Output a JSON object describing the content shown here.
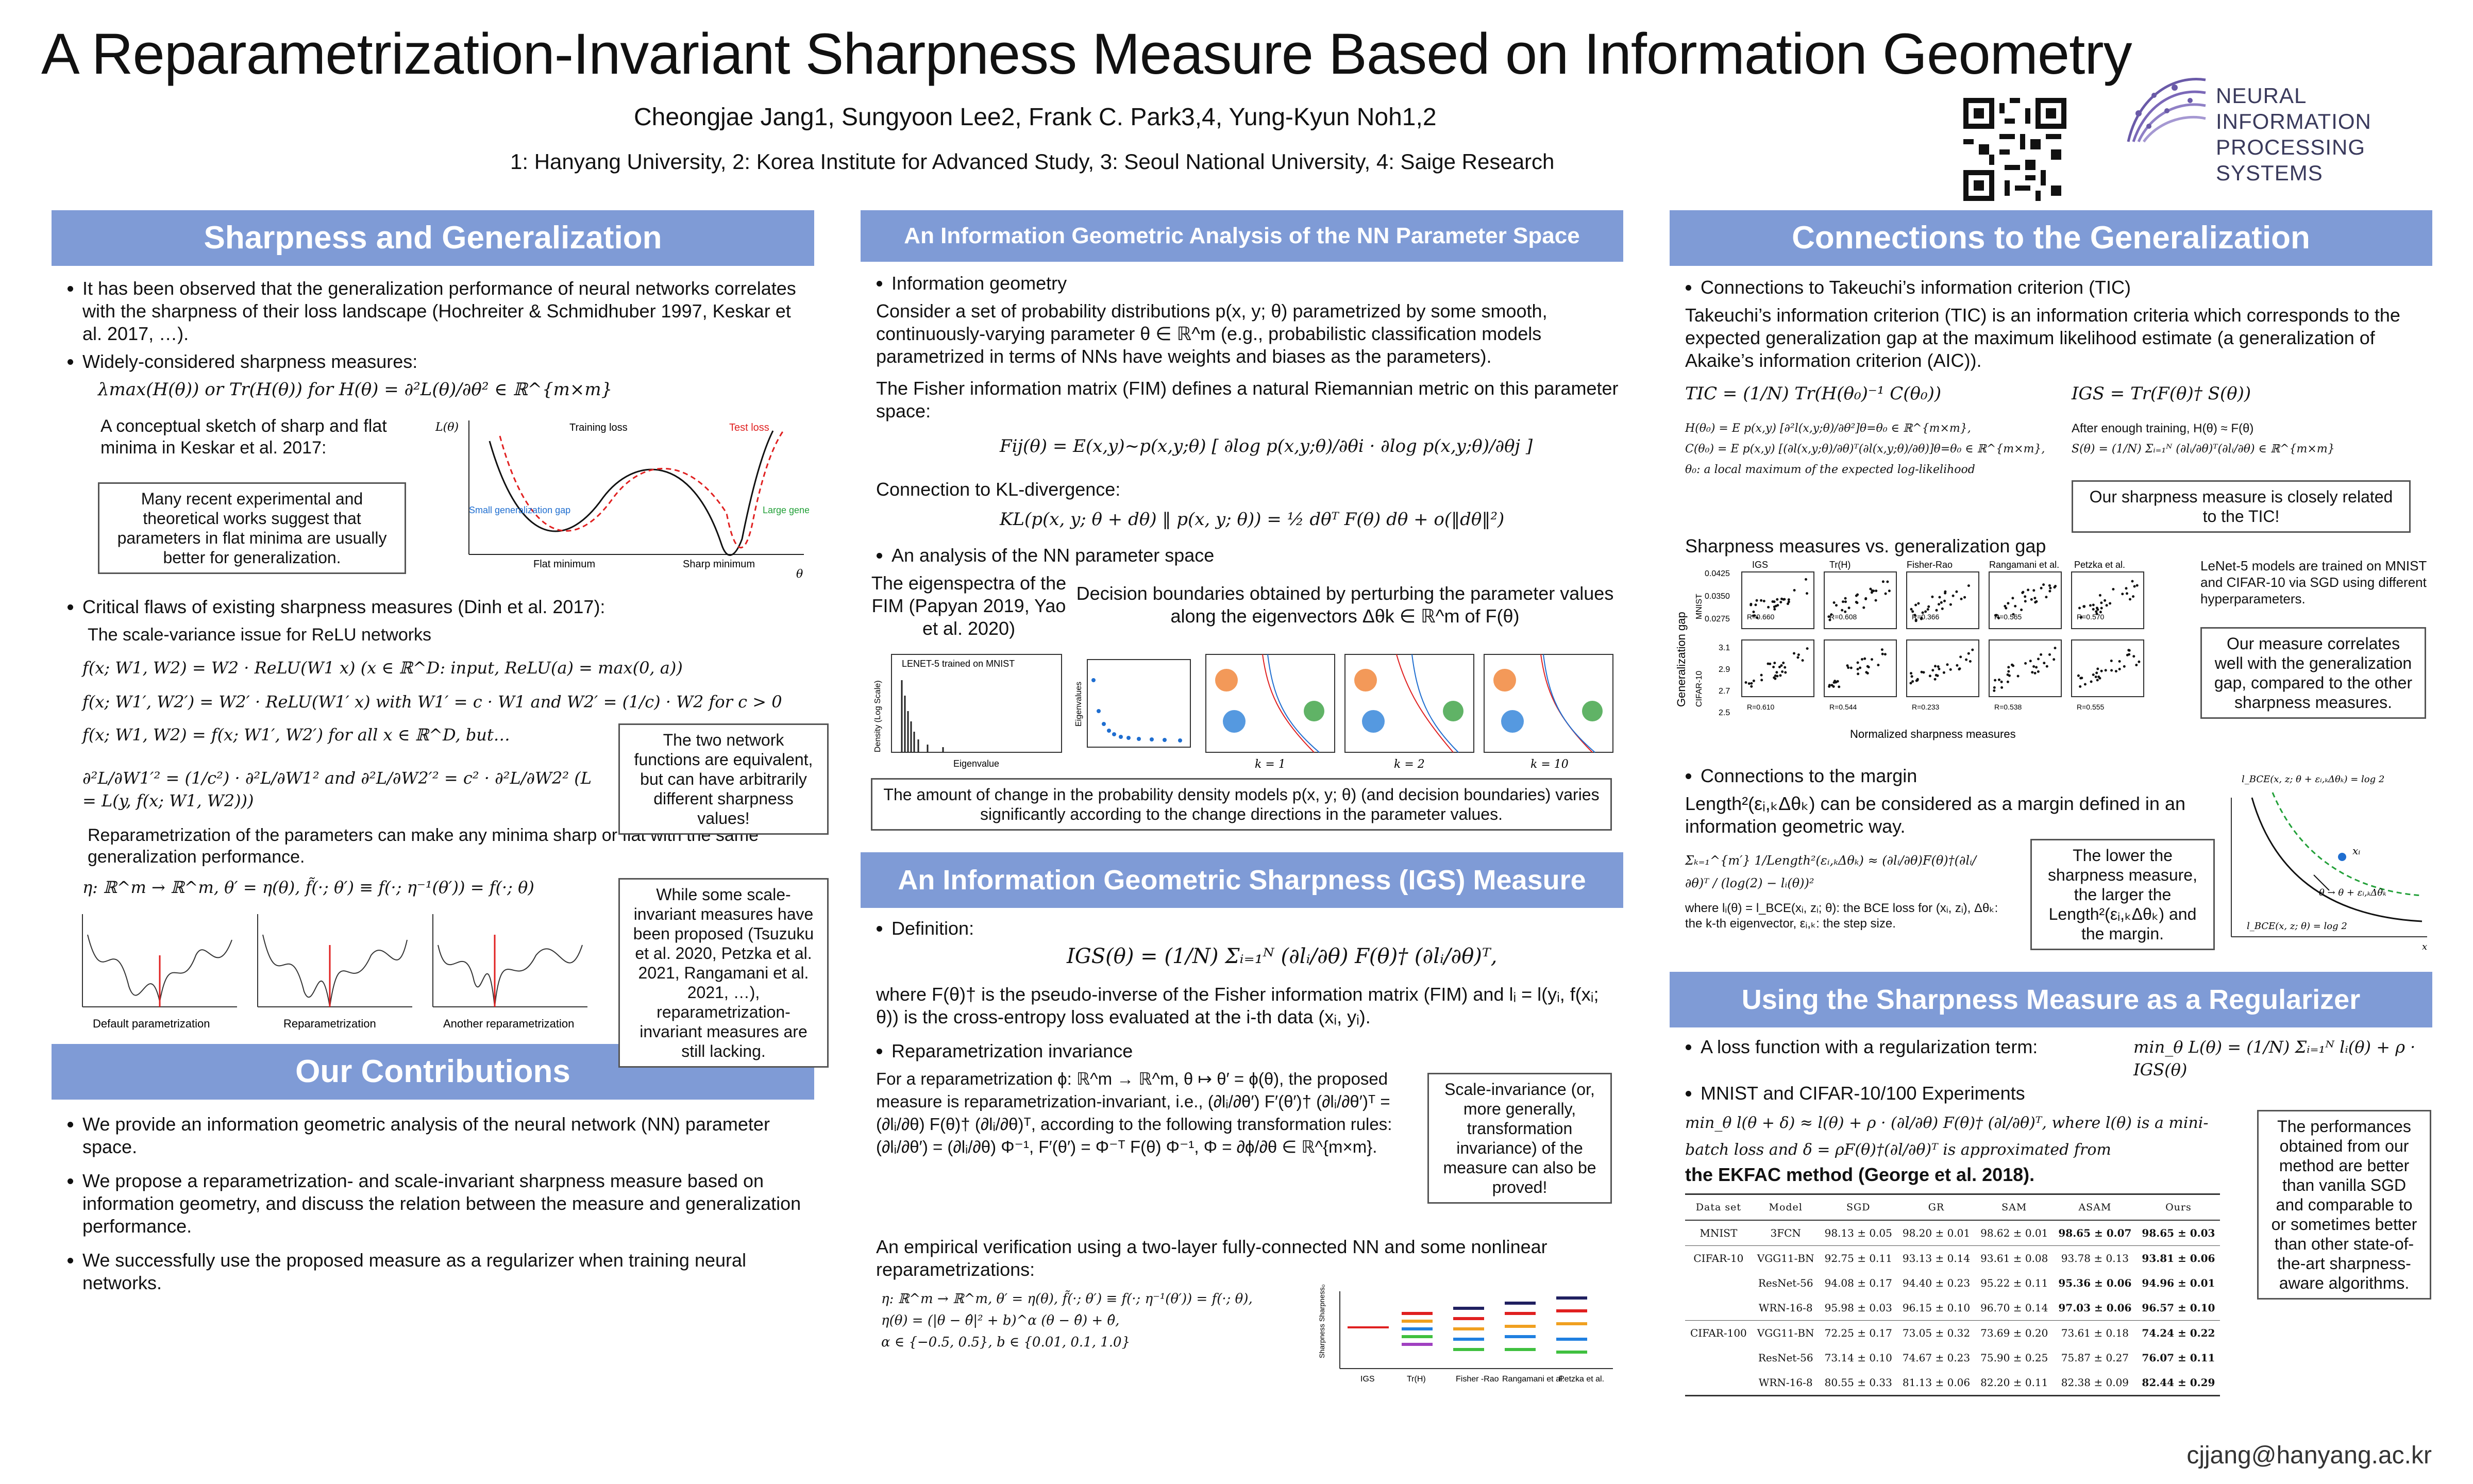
{
  "header": {
    "title": "A Reparametrization-Invariant Sharpness Measure Based on Information Geometry",
    "authors": "Cheongjae Jang1, Sungyoon Lee2, Frank C. Park3,4, Yung-Kyun Noh1,2",
    "affiliations": "1: Hanyang University, 2: Korea Institute for Advanced Study, 3: Seoul National University, 4: Saige Research",
    "logo_line1": "NEURAL INFORMATION",
    "logo_line2": "PROCESSING SYSTEMS"
  },
  "col1": {
    "sec1_title": "Sharpness and Generalization",
    "b1": "It has been observed that the generalization performance of neural networks correlates with the sharpness of their loss landscape (Hochreiter & Schmidhuber 1997, Keskar et al. 2017, …).",
    "b2": "Widely-considered sharpness measures:",
    "measure_eq": "λmax(H(θ))   or   Tr(H(θ))   for   H(θ) = ∂²L(θ)/∂θ² ∈ ℝ^{m×m}",
    "sketch_caption": "A conceptual sketch of sharp and flat minima in Keskar et al. 2017:",
    "flat_box": "Many recent experimental and theoretical works suggest that parameters in flat minima are usually better for generalization.",
    "fig_labels": [
      "L(θ)",
      "Training loss",
      "Test loss",
      "Small generalization gap",
      "Large generalization gap",
      "Flat minimum",
      "Sharp minimum",
      "θ"
    ],
    "b3": "Critical flaws of existing sharpness measures (Dinh et al. 2017):",
    "scale_title": "The scale-variance issue for ReLU networks",
    "eq1": "f(x; W1, W2) = W2 · ReLU(W1 x)      (x ∈ ℝ^D: input,  ReLU(a) = max(0, a))",
    "eq2": "f(x; W1′, W2′) = W2′ · ReLU(W1′ x)   with W1′ = c · W1 and W2′ = (1/c) · W2 for c > 0",
    "eq3": "f(x; W1, W2) = f(x; W1′, W2′) for all x ∈ ℝ^D, but…",
    "eq4": "∂²L/∂W1′² = (1/c²) · ∂²L/∂W1²   and   ∂²L/∂W2′² = c² · ∂²L/∂W2²   (L = L(y, f(x; W1, W2)))",
    "equiv_box": "The two network functions are equivalent, but can have arbitrarily different sharpness values!",
    "reparam_text": "Reparametrization of the parameters can make any minima sharp or flat with the same generalization performance.",
    "reparam_eq": "η: ℝ^m → ℝ^m,     θ′ = η(θ),     f̃(·; θ′) ≡ f(·; η⁻¹(θ′)) = f(·; θ)",
    "plot_labels": [
      "Default parametrization",
      "Reparametrization",
      "Another reparametrization"
    ],
    "invariant_box": "While some scale-invariant measures have been proposed (Tsuzuku et al. 2020, Petzka et al. 2021, Rangamani et al. 2021, …), reparametrization-invariant measures are still lacking.",
    "sec2_title": "Our Contributions",
    "c1": "We provide an information geometric analysis of the neural network (NN) parameter space.",
    "c2": "We propose a reparametrization- and scale-invariant sharpness measure based on information geometry, and discuss the relation between the measure and generalization performance.",
    "c3": "We successfully use the proposed measure as a regularizer when training neural networks."
  },
  "col2": {
    "sec1_title": "An Information Geometric Analysis of the NN Parameter Space",
    "b1": "Information geometry",
    "ig_text": "Consider a set of probability distributions p(x, y; θ) parametrized by some smooth, continuously-varying parameter θ ∈ ℝ^m (e.g., probabilistic classification models parametrized in terms of NNs have weights and biases as the parameters).",
    "fim_text": "The Fisher information matrix (FIM) defines a natural Riemannian metric on this parameter space:",
    "fim_eq": "Fij(θ) = E(x,y)~p(x,y;θ) [ ∂log p(x,y;θ)/∂θi · ∂log p(x,y;θ)/∂θj ]",
    "kl_text": "Connection to KL-divergence:",
    "kl_eq": "KL(p(x, y; θ + dθ) ‖ p(x, y; θ)) = ½ dθᵀ F(θ) dθ + o(‖dθ‖²)",
    "b2": "An analysis of the NN parameter space",
    "eig_text": "The eigenspectra of the FIM (Papyan 2019, Yao et al. 2020)",
    "db_text": "Decision boundaries obtained by perturbing the parameter values along the eigenvectors Δθk ∈ ℝ^m of F(θ)",
    "lenet_label": "LENET-5 trained on MNIST",
    "axis_density": "Density (Log Scale)",
    "axis_eig": "Eigenvalue",
    "axis_eigs": "Eigenvalues",
    "k_labels": [
      "k = 1",
      "k = 2",
      "k = 10"
    ],
    "change_box": "The amount of change in the probability density models p(x, y; θ) (and decision boundaries) varies significantly according to the change directions in the parameter values.",
    "sec2_title": "An Information Geometric Sharpness (IGS) Measure",
    "def_label": "Definition:",
    "igs_eq": "IGS(θ) = (1/N) Σᵢ₌₁ᴺ (∂lᵢ/∂θ) F(θ)† (∂lᵢ/∂θ)ᵀ,",
    "where_text": "where F(θ)† is the pseudo-inverse of the Fisher information matrix (FIM) and lᵢ = l(yᵢ, f(xᵢ; θ)) is the cross-entropy loss evaluated at the i-th data (xᵢ, yᵢ).",
    "b3": "Reparametrization invariance",
    "rp_text": "For a reparametrization ϕ: ℝ^m → ℝ^m, θ ↦ θ′ = ϕ(θ), the proposed measure is reparametrization-invariant, i.e., (∂lᵢ/∂θ′) F′(θ′)† (∂lᵢ/∂θ′)ᵀ = (∂lᵢ/∂θ) F(θ)† (∂lᵢ/∂θ)ᵀ, according to the following transformation rules: (∂lᵢ/∂θ′) = (∂lᵢ/∂θ) Φ⁻¹, F′(θ′) = Φ⁻ᵀ F(θ) Φ⁻¹, Φ = ∂ϕ/∂θ ∈ ℝ^{m×m}.",
    "si_box": "Scale-invariance (or, more generally, transformation invariance) of the measure can also be proved!",
    "emp_text": "An empirical verification using a two-layer fully-connected NN and some nonlinear reparametrizations:",
    "emp_eq1": "η: ℝ^m → ℝ^m,     θ′ = η(θ),     f̃(·; θ′) ≡ f(·; η⁻¹(θ′)) = f(·; θ),",
    "emp_eq2": "η(θ) = (|θ − θ̂|² + b)^α (θ − θ̂) + θ̂,",
    "emp_eq3": "α ∈ {−0.5, 0.5},   b ∈ {0.01, 0.1, 1.0}",
    "bar_labels": [
      "IGS",
      "Tr(H)",
      "Fisher -Rao",
      "Rangamani et al.",
      "Petzka et al."
    ],
    "bar_ylabel": "Sharpness Sharpness₀"
  },
  "col3": {
    "sec1_title": "Connections to the Generalization",
    "b1": "Connections to Takeuchi’s information criterion (TIC)",
    "tic_text": "Takeuchi’s information criterion (TIC) is an information criteria which corresponds to the expected generalization gap at the maximum likelihood estimate (a generalization of Akaike’s information criterion (AIC)).",
    "tic_eq": "TIC = (1/N) Tr(H(θ₀)⁻¹ C(θ₀))",
    "igs_eq": "IGS = Tr(F(θ)† S(θ))",
    "h_eq": "H(θ₀) = E p(x,y) [∂²l(x,y;θ)/∂θ²]θ=θ₀ ∈ ℝ^{m×m},",
    "c_eq": "C(θ₀) = E p(x,y) [(∂l(x,y;θ)/∂θ)ᵀ(∂l(x,y;θ)/∂θ)]θ=θ₀ ∈ ℝ^{m×m},",
    "theta0": "θ₀: a local maximum of the expected log-likelihood",
    "after_text": "After enough training, H(θ) ≈ F(θ)",
    "s_eq": "S(θ) = (1/N) Σᵢ₌₁ᴺ (∂lᵢ/∂θ)ᵀ(∂lᵢ/∂θ) ∈ ℝ^{m×m}",
    "tic_box": "Our sharpness measure is closely related to the TIC!",
    "gap_title": "Sharpness measures vs. generalization gap",
    "scatter_cols": [
      "IGS",
      "Tr(H)",
      "Fisher-Rao",
      "Rangamani et al.",
      "Petzka et al."
    ],
    "scatter_r_top": [
      "R=0.660",
      "R=0.608",
      "R=0.366",
      "R=0.565",
      "R=0.570"
    ],
    "scatter_r_bot": [
      "R=0.610",
      "R=0.544",
      "R=0.233",
      "R=0.538",
      "R=0.555"
    ],
    "y_ticks_top": [
      "0.0425",
      "0.0350",
      "0.0275"
    ],
    "y_ticks_bot": [
      "3.1",
      "2.9",
      "2.7",
      "2.5"
    ],
    "row_labels": [
      "MNIST",
      "CIFAR-10"
    ],
    "gap_ylabel": "Generalization gap",
    "gap_xlabel": "Normalized sharpness measures",
    "lenet_note": "LeNet-5 models are trained on MNIST and CIFAR-10 via SGD using different hyperparameters.",
    "corr_box": "Our measure correlates well with the generalization gap, compared to the other sharpness measures.",
    "b2": "Connections to the margin",
    "margin_text": "Length²(εᵢ,ₖΔθₖ) can be considered as a margin defined in an information geometric way.",
    "margin_eq": "Σₖ₌₁^{m′} 1/Length²(εᵢ,ₖΔθₖ) ≈ (∂lᵢ/∂θ)F(θ)†(∂lᵢ/∂θ)ᵀ / (log(2) − lᵢ(θ))²",
    "where_margin": "where lᵢ(θ) = l_BCE(xᵢ, zᵢ; θ): the BCE loss for (xᵢ, zᵢ), Δθₖ: the k-th eigenvector, εᵢ,ₖ: the step size.",
    "lower_box": "The lower the sharpness measure, the larger the Length²(εᵢ,ₖΔθₖ) and the margin.",
    "margin_fig": [
      "l_BCE(x, z; θ + εᵢ,ₖΔθₖ) = log 2",
      "xᵢ",
      "θ → θ + εᵢ,ₖΔθₖ",
      "l_BCE(x, z; θ) = log 2",
      "x"
    ],
    "sec2_title": "Using the Sharpness Measure as a Regularizer",
    "b3": "A loss function with a regularization term:",
    "reg_eq": "min_θ L(θ) = (1/N) Σᵢ₌₁ᴺ lᵢ(θ) + ρ · IGS(θ)",
    "b4": "MNIST and CIFAR-10/100 Experiments",
    "mb_eq": "min_θ l(θ + δ) ≈ l(θ) + ρ · (∂l/∂θ) F(θ)† (∂l/∂θ)ᵀ, where l(θ) is a mini-batch loss and δ = ρF(θ)†(∂l/∂θ)ᵀ is approximated from",
    "ekfac": "the EKFAC method (George et al. 2018).",
    "perf_box": "The performances obtained from our method are better than vanilla SGD and comparable to or sometimes better than other state-of-the-art sharpness-aware algorithms.",
    "table": {
      "headers": [
        "Data set",
        "Model",
        "SGD",
        "GR",
        "SAM",
        "ASAM",
        "Ours"
      ],
      "rows": [
        [
          "MNIST",
          "3FCN",
          "98.13 ± 0.05",
          "98.20 ± 0.01",
          "98.62 ± 0.01",
          "98.65 ± 0.07",
          "98.65 ± 0.03"
        ],
        [
          "CIFAR-10",
          "VGG11-BN",
          "92.75 ± 0.11",
          "93.13 ± 0.14",
          "93.61 ± 0.08",
          "93.78 ± 0.13",
          "93.81 ± 0.06"
        ],
        [
          "",
          "ResNet-56",
          "94.08 ± 0.17",
          "94.40 ± 0.23",
          "95.22 ± 0.11",
          "95.36 ± 0.06",
          "94.96 ± 0.01"
        ],
        [
          "",
          "WRN-16-8",
          "95.98 ± 0.03",
          "96.15 ± 0.10",
          "96.70 ± 0.14",
          "97.03 ± 0.06",
          "96.57 ± 0.10"
        ],
        [
          "CIFAR-100",
          "VGG11-BN",
          "72.25 ± 0.17",
          "73.05 ± 0.32",
          "73.69 ± 0.20",
          "73.61 ± 0.18",
          "74.24 ± 0.22"
        ],
        [
          "",
          "ResNet-56",
          "73.14 ± 0.10",
          "74.67 ± 0.23",
          "75.90 ± 0.25",
          "75.87 ± 0.27",
          "76.07 ± 0.11"
        ],
        [
          "",
          "WRN-16-8",
          "80.55 ± 0.33",
          "81.13 ± 0.06",
          "82.20 ± 0.11",
          "82.38 ± 0.09",
          "82.44 ± 0.29"
        ]
      ]
    }
  },
  "footer": {
    "email": "cjjang@hanyang.ac.kr"
  },
  "colors": {
    "header_blue": "#7f9bd6",
    "green": "#22a038",
    "red": "#e02020",
    "blue": "#1f6ed0"
  }
}
